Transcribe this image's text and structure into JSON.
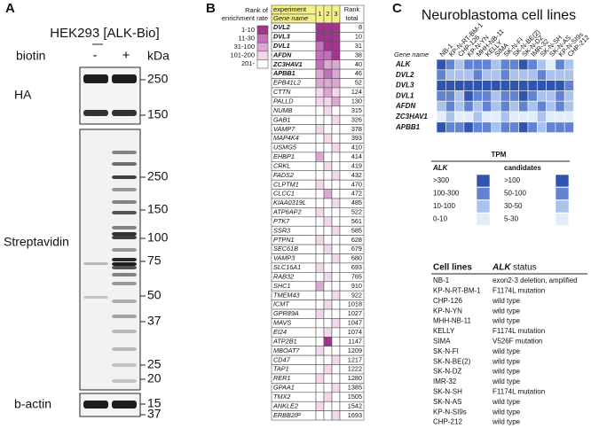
{
  "panel_a": {
    "label": "A",
    "title": "HEK293 [ALK-Bio]",
    "condition_label": "biotin",
    "lanes": [
      "-",
      "+"
    ],
    "unit": "kDa",
    "blots": [
      {
        "name": "HA",
        "markers": [
          250,
          150
        ]
      },
      {
        "name": "Streptavidin",
        "markers": [
          250,
          150,
          100,
          75,
          50,
          37,
          25,
          20,
          15
        ]
      },
      {
        "name": "b-actin",
        "markers": [
          37
        ]
      }
    ]
  },
  "panel_b": {
    "label": "B",
    "legend_title": [
      "Rank of",
      "enrichment rate"
    ],
    "legend": [
      {
        "label": "1-10",
        "color": "#a3338f"
      },
      {
        "label": "11-30",
        "color": "#c46fb9"
      },
      {
        "label": "31-100",
        "color": "#dca8d3"
      },
      {
        "label": "101-200",
        "color": "#f1d8ec"
      },
      {
        "label": "201-",
        "color": "#ffffff"
      }
    ],
    "group_header": "experiment",
    "gene_header": "Gene name",
    "experiments": [
      1,
      2,
      3
    ],
    "rank_header": [
      "Rank",
      "total"
    ],
    "rows": [
      {
        "gene": "DVL2",
        "bold": true,
        "rank": 8,
        "cells": [
          "1-10",
          "1-10",
          "1-10"
        ]
      },
      {
        "gene": "DVL3",
        "bold": true,
        "rank": 10,
        "cells": [
          "1-10",
          "1-10",
          "1-10"
        ]
      },
      {
        "gene": "DVL1",
        "bold": true,
        "rank": 31,
        "cells": [
          "11-30",
          "1-10",
          "1-10"
        ]
      },
      {
        "gene": "AFDN",
        "bold": true,
        "rank": 38,
        "cells": [
          "11-30",
          "11-30",
          "1-10"
        ]
      },
      {
        "gene": "ZC3HAV1",
        "bold": true,
        "rank": 40,
        "cells": [
          "11-30",
          "31-100",
          "31-100"
        ]
      },
      {
        "gene": "APBB1",
        "bold": true,
        "rank": 46,
        "cells": [
          "31-100",
          "11-30",
          "31-100"
        ]
      },
      {
        "gene": "EPB41L2",
        "bold": false,
        "rank": 52,
        "cells": [
          "31-100",
          "31-100",
          "31-100"
        ]
      },
      {
        "gene": "CTTN",
        "bold": false,
        "rank": 124,
        "cells": [
          "101-200",
          "31-100",
          "101-200"
        ]
      },
      {
        "gene": "PALLD",
        "bold": false,
        "rank": 130,
        "cells": [
          "101-200",
          "101-200",
          "31-100"
        ]
      },
      {
        "gene": "NUMB",
        "bold": false,
        "rank": 315,
        "cells": [
          "201-",
          "101-200",
          "201-"
        ]
      },
      {
        "gene": "GAB1",
        "bold": false,
        "rank": 326,
        "cells": [
          "201-",
          "201-",
          "101-200"
        ]
      },
      {
        "gene": "VAMP7",
        "bold": false,
        "rank": 378,
        "cells": [
          "101-200",
          "201-",
          "201-"
        ]
      },
      {
        "gene": "MAP4K4",
        "bold": false,
        "rank": 393,
        "cells": [
          "201-",
          "101-200",
          "201-"
        ]
      },
      {
        "gene": "USMG5",
        "bold": false,
        "rank": 410,
        "cells": [
          "201-",
          "201-",
          "101-200"
        ]
      },
      {
        "gene": "EHBP1",
        "bold": false,
        "rank": 414,
        "cells": [
          "31-100",
          "201-",
          "201-"
        ]
      },
      {
        "gene": "CRKL",
        "bold": false,
        "rank": 419,
        "cells": [
          "201-",
          "101-200",
          "201-"
        ]
      },
      {
        "gene": "FADS2",
        "bold": false,
        "rank": 432,
        "cells": [
          "201-",
          "201-",
          "101-200"
        ]
      },
      {
        "gene": "CLPTM1",
        "bold": false,
        "rank": 470,
        "cells": [
          "101-200",
          "201-",
          "201-"
        ]
      },
      {
        "gene": "CLCC1",
        "bold": false,
        "rank": 472,
        "cells": [
          "201-",
          "31-100",
          "201-"
        ]
      },
      {
        "gene": "KIAA0319L",
        "bold": false,
        "rank": 485,
        "cells": [
          "201-",
          "201-",
          "101-200"
        ]
      },
      {
        "gene": "ATP6AP2",
        "bold": false,
        "rank": 522,
        "cells": [
          "101-200",
          "201-",
          "201-"
        ]
      },
      {
        "gene": "PTK7",
        "bold": false,
        "rank": 561,
        "cells": [
          "201-",
          "101-200",
          "201-"
        ]
      },
      {
        "gene": "SSR3",
        "bold": false,
        "rank": 585,
        "cells": [
          "201-",
          "201-",
          "101-200"
        ]
      },
      {
        "gene": "PTPN1",
        "bold": false,
        "rank": 628,
        "cells": [
          "101-200",
          "201-",
          "201-"
        ]
      },
      {
        "gene": "SEC61B",
        "bold": false,
        "rank": 679,
        "cells": [
          "201-",
          "101-200",
          "201-"
        ]
      },
      {
        "gene": "VAMP3",
        "bold": false,
        "rank": 680,
        "cells": [
          "201-",
          "201-",
          "101-200"
        ]
      },
      {
        "gene": "SLC16A1",
        "bold": false,
        "rank": 693,
        "cells": [
          "101-200",
          "201-",
          "201-"
        ]
      },
      {
        "gene": "RAB32",
        "bold": false,
        "rank": 765,
        "cells": [
          "201-",
          "101-200",
          "201-"
        ]
      },
      {
        "gene": "SHC1",
        "bold": false,
        "rank": 910,
        "cells": [
          "31-100",
          "201-",
          "201-"
        ]
      },
      {
        "gene": "TMEM43",
        "bold": false,
        "rank": 922,
        "cells": [
          "201-",
          "201-",
          "101-200"
        ]
      },
      {
        "gene": "ICMT",
        "bold": false,
        "rank": 1018,
        "cells": [
          "201-",
          "101-200",
          "201-"
        ]
      },
      {
        "gene": "GPR89A",
        "bold": false,
        "rank": 1027,
        "cells": [
          "101-200",
          "201-",
          "201-"
        ]
      },
      {
        "gene": "MAVS",
        "bold": false,
        "rank": 1047,
        "cells": [
          "201-",
          "201-",
          "101-200"
        ]
      },
      {
        "gene": "EI24",
        "bold": false,
        "rank": 1074,
        "cells": [
          "201-",
          "101-200",
          "201-"
        ]
      },
      {
        "gene": "ATP2B1",
        "bold": false,
        "rank": 1147,
        "cells": [
          "201-",
          "1-10",
          "201-"
        ]
      },
      {
        "gene": "MBOAT7",
        "bold": false,
        "rank": 1209,
        "cells": [
          "101-200",
          "201-",
          "201-"
        ]
      },
      {
        "gene": "CD47",
        "bold": false,
        "rank": 1217,
        "cells": [
          "201-",
          "201-",
          "101-200"
        ]
      },
      {
        "gene": "TAP1",
        "bold": false,
        "rank": 1222,
        "cells": [
          "201-",
          "101-200",
          "201-"
        ]
      },
      {
        "gene": "RER1",
        "bold": false,
        "rank": 1280,
        "cells": [
          "101-200",
          "201-",
          "201-"
        ]
      },
      {
        "gene": "GPAA1",
        "bold": false,
        "rank": 1385,
        "cells": [
          "201-",
          "201-",
          "101-200"
        ]
      },
      {
        "gene": "TMX2",
        "bold": false,
        "rank": 1505,
        "cells": [
          "201-",
          "101-200",
          "201-"
        ]
      },
      {
        "gene": "ANKLE2",
        "bold": false,
        "rank": 1542,
        "cells": [
          "101-200",
          "201-",
          "201-"
        ]
      },
      {
        "gene": "ERBB2IP",
        "bold": false,
        "rank": 1693,
        "cells": [
          "201-",
          "201-",
          "101-200"
        ]
      }
    ]
  },
  "panel_c": {
    "label": "C",
    "title": "Neuroblastoma cell lines",
    "gene_header": "Gene name",
    "cell_lines": [
      "NB-1",
      "KP-N-RT-BM-1",
      "CHP-126",
      "KP-N-YN",
      "MHH-NB-11",
      "KELLY",
      "SIMA",
      "SK-N-FI",
      "SK-N-BE(2)",
      "SK-N-DZ",
      "IMR-32",
      "SK-N-SH",
      "SK-N-AS",
      "KP-N-SI9s",
      "CHP-212"
    ],
    "rows": [
      {
        "gene": "ALK",
        "cells": [
          ">300",
          "100-300",
          "10-100",
          "100-300",
          "100-300",
          "100-300",
          "10-100",
          "100-300",
          "100-300",
          ">300",
          "100-300",
          "10-100",
          "0-10",
          "100-300",
          "10-100"
        ]
      },
      {
        "gene": "DVL2",
        "cells": [
          "50-100",
          "30-50",
          "30-50",
          "30-50",
          "50-100",
          "30-50",
          "30-50",
          "50-100",
          "30-50",
          "30-50",
          "30-50",
          "50-100",
          "30-50",
          "30-50",
          "30-50"
        ]
      },
      {
        "gene": "DVL3",
        "cells": [
          ">100",
          ">100",
          ">100",
          ">100",
          ">100",
          ">100",
          ">100",
          ">100",
          ">100",
          ">100",
          ">100",
          ">100",
          ">100",
          ">100",
          "50-100"
        ]
      },
      {
        "gene": "DVL1",
        "cells": [
          "50-100",
          "50-100",
          "30-50",
          ">100",
          "50-100",
          "50-100",
          "30-50",
          "50-100",
          "50-100",
          ">100",
          "50-100",
          "30-50",
          "30-50",
          "50-100",
          "30-50"
        ]
      },
      {
        "gene": "AFDN",
        "cells": [
          "30-50",
          "50-100",
          "30-50",
          "50-100",
          "30-50",
          "50-100",
          "30-50",
          "50-100",
          "30-50",
          "50-100",
          "30-50",
          "50-100",
          "30-50",
          "50-100",
          "30-50"
        ]
      },
      {
        "gene": "ZC3HAV1",
        "cells": [
          "5-30",
          "30-50",
          "5-30",
          "5-30",
          "30-50",
          "5-30",
          "5-30",
          "30-50",
          "5-30",
          "5-30",
          "5-30",
          "30-50",
          "5-30",
          "5-30",
          "5-30"
        ]
      },
      {
        "gene": "APBB1",
        "cells": [
          ">100",
          "50-100",
          "50-100",
          ">100",
          "50-100",
          "50-100",
          "30-50",
          "50-100",
          "50-100",
          ">100",
          "50-100",
          "30-50",
          "50-100",
          "50-100",
          "50-100"
        ]
      }
    ],
    "legend": {
      "title": "TPM",
      "scales": [
        {
          "name": "ALK",
          "levels": [
            {
              "label": ">300",
              "color": "#2f55b0"
            },
            {
              "label": "100-300",
              "color": "#6283d2"
            },
            {
              "label": "10-100",
              "color": "#abc3ec"
            },
            {
              "label": "0-10",
              "color": "#e3edf9"
            }
          ]
        },
        {
          "name": "candidates",
          "levels": [
            {
              "label": ">100",
              "color": "#2f55b0"
            },
            {
              "label": "50-100",
              "color": "#6283d2"
            },
            {
              "label": "30-50",
              "color": "#abc3ec"
            },
            {
              "label": "5-30",
              "color": "#e3edf9"
            }
          ]
        }
      ]
    },
    "status_table": {
      "line_header": "Cell lines",
      "status_header": [
        "ALK",
        "status"
      ],
      "rows": [
        [
          "NB-1",
          "exon2-3 deletion, amplified"
        ],
        [
          "KP-N-RT-BM-1",
          "F1174L mutation"
        ],
        [
          "CHP-126",
          "wild type"
        ],
        [
          "KP-N-YN",
          "wild type"
        ],
        [
          "MHH-NB-11",
          "wild type"
        ],
        [
          "KELLY",
          "F1174L mutation"
        ],
        [
          "SIMA",
          "V526F mutation"
        ],
        [
          "SK-N-FI",
          "wild type"
        ],
        [
          "SK-N-BE(2)",
          "wild type"
        ],
        [
          "SK-N-DZ",
          "wild type"
        ],
        [
          "IMR-32",
          "wild type"
        ],
        [
          "SK-N-SH",
          "F1174L mutation"
        ],
        [
          "SK-N-AS",
          "wild type"
        ],
        [
          "KP-N-SI9s",
          "wild type"
        ],
        [
          "CHP-212",
          "wild type"
        ]
      ]
    }
  }
}
